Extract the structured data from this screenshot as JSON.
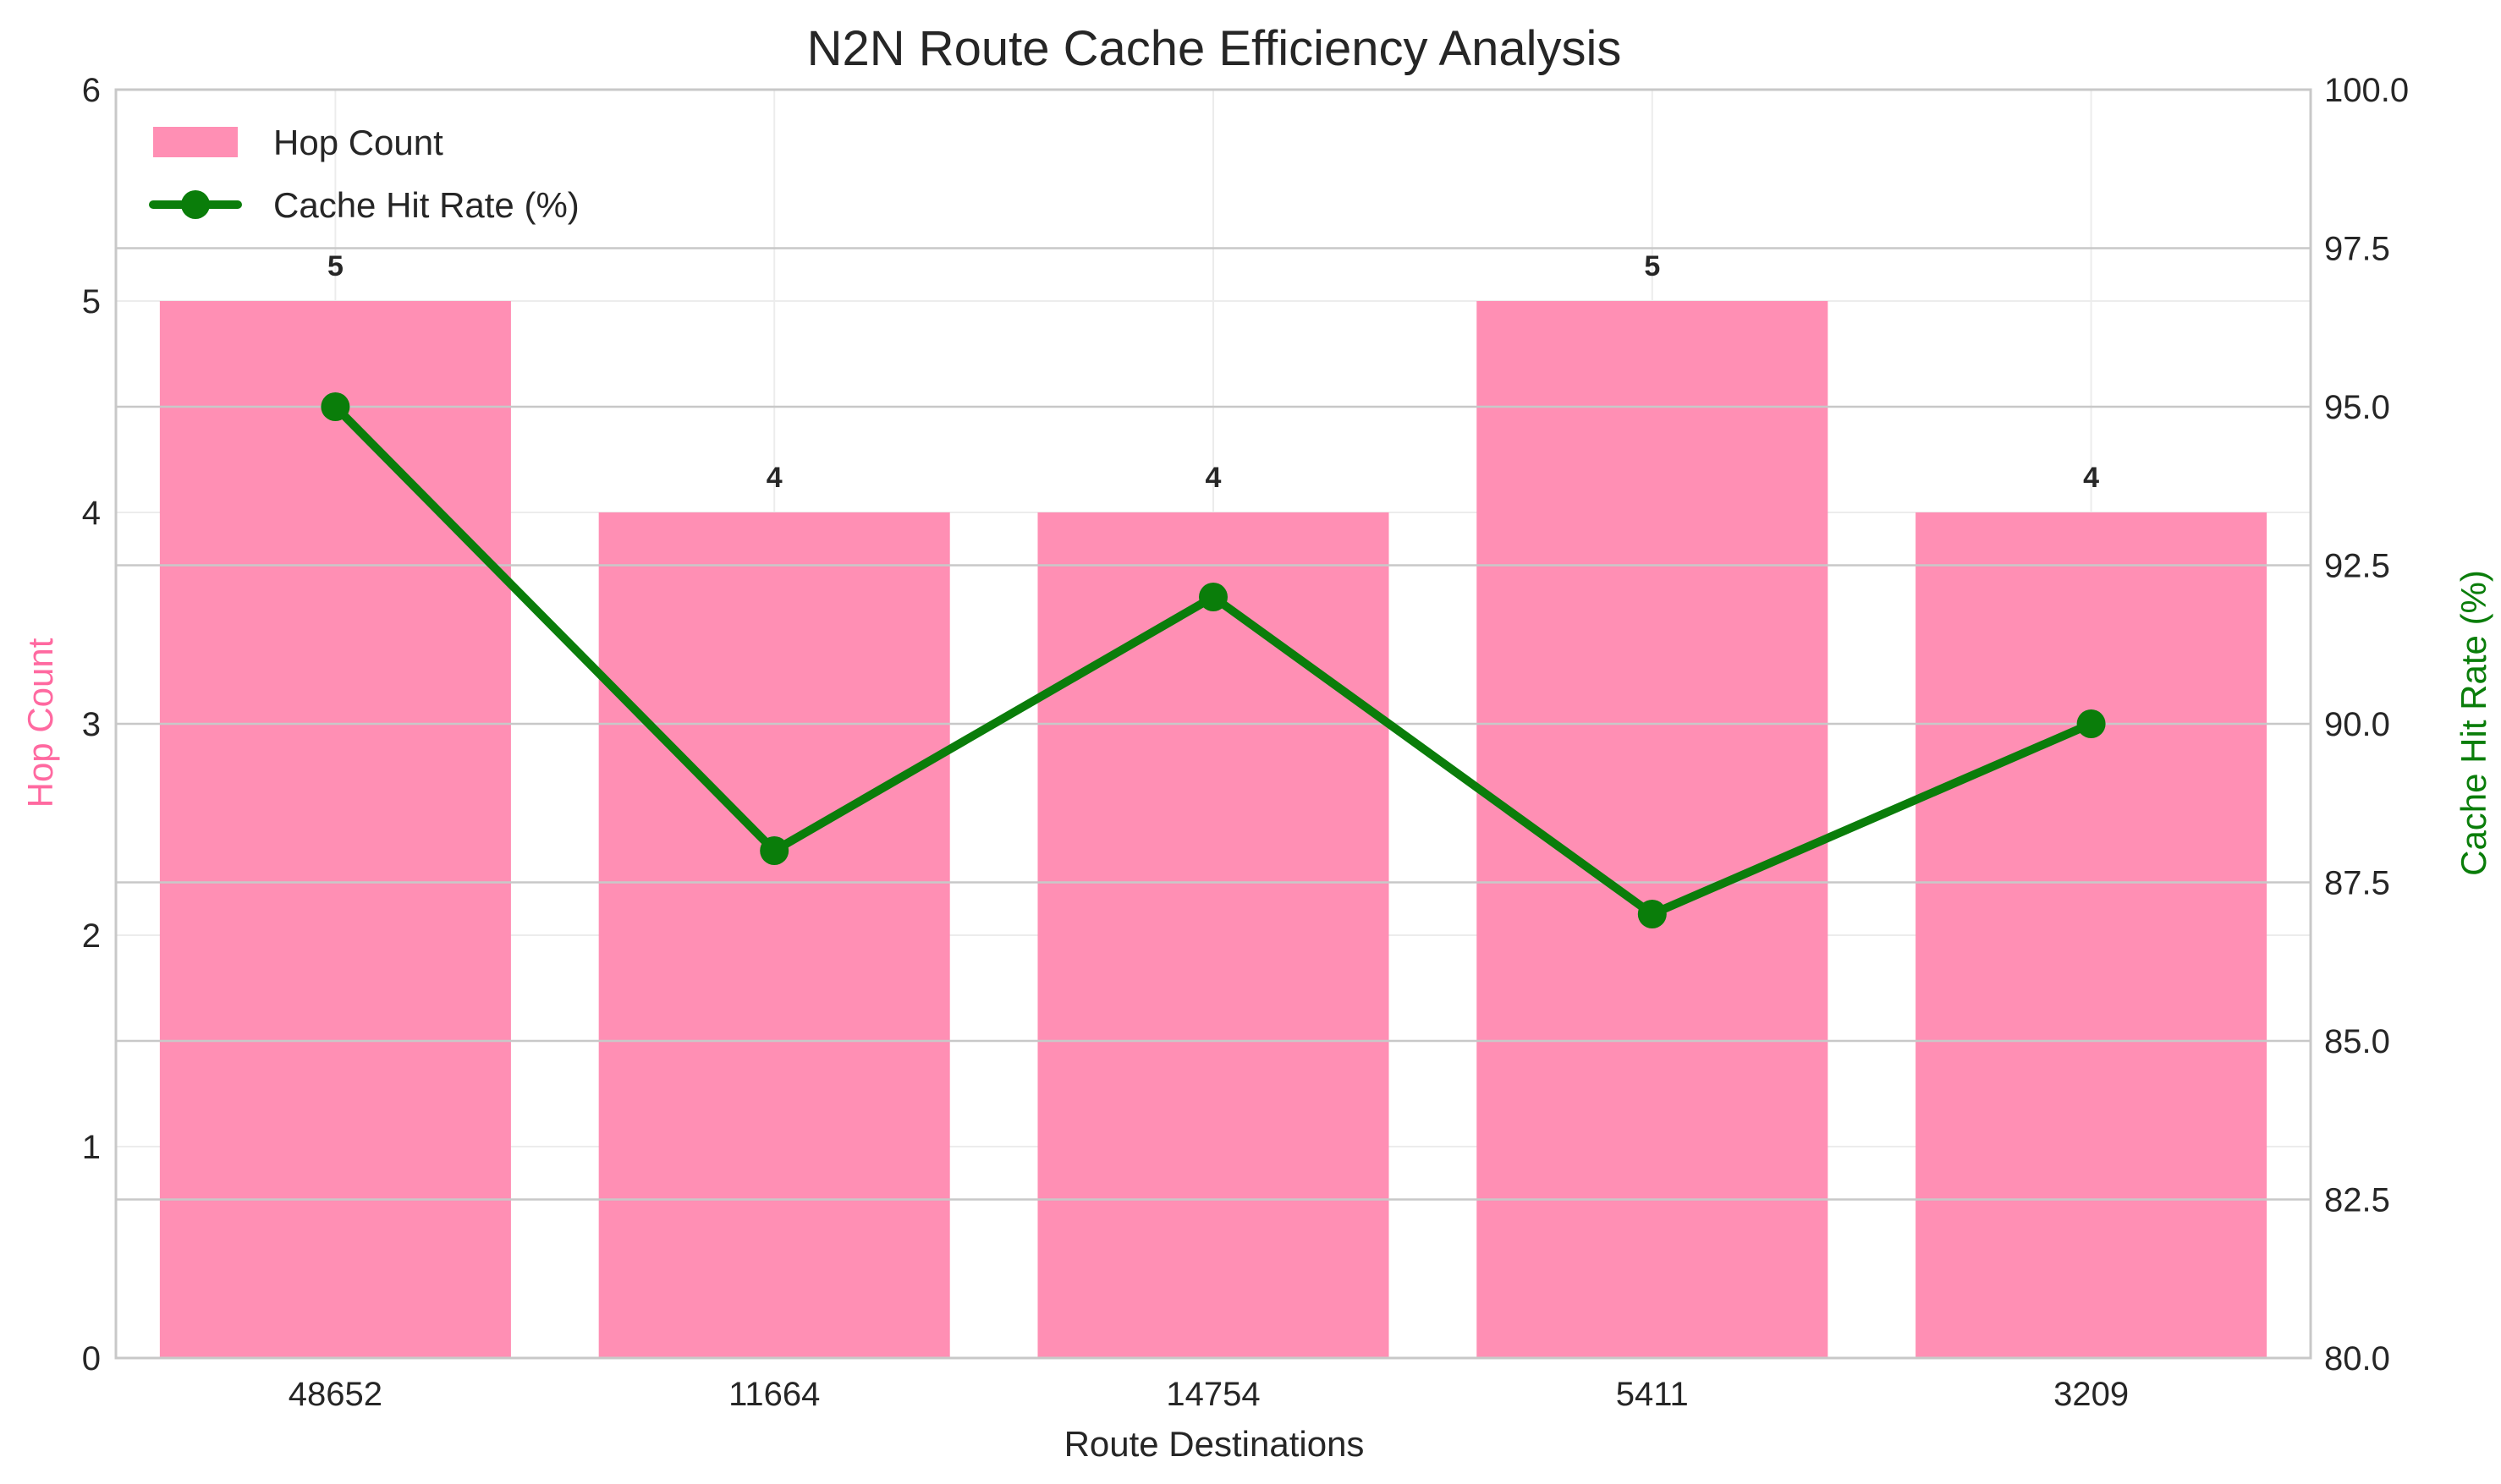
{
  "chart_data": {
    "type": "bar",
    "title": "N2N Route Cache Efficiency Analysis",
    "xlabel": "Route Destinations",
    "ylabel": "Hop Count",
    "ylabel_right": "Cache Hit Rate (%)",
    "categories": [
      "48652",
      "11664",
      "14754",
      "5411",
      "3209"
    ],
    "ylim": [
      0,
      6
    ],
    "ylim_right": [
      80,
      100
    ],
    "yticks": [
      "0",
      "1",
      "2",
      "3",
      "4",
      "5",
      "6"
    ],
    "yticks_right": [
      "80.0",
      "82.5",
      "85.0",
      "87.5",
      "90.0",
      "92.5",
      "95.0",
      "97.5",
      "100.0"
    ],
    "grid": true,
    "legend_position": "top-left",
    "series": [
      {
        "name": "Hop Count",
        "type": "bar",
        "axis": "left",
        "color": "#ff8fb4",
        "values": [
          5,
          4,
          4,
          5,
          4
        ],
        "data_labels": [
          "5",
          "4",
          "4",
          "5",
          "4"
        ]
      },
      {
        "name": "Cache Hit Rate (%)",
        "type": "line",
        "axis": "right",
        "color": "#0a7d0a",
        "marker": "circle",
        "values": [
          95,
          88,
          92,
          87,
          90
        ]
      }
    ],
    "colors": {
      "left_axis_label": "#ff69a0",
      "right_axis_label": "#0a7d0a"
    }
  }
}
